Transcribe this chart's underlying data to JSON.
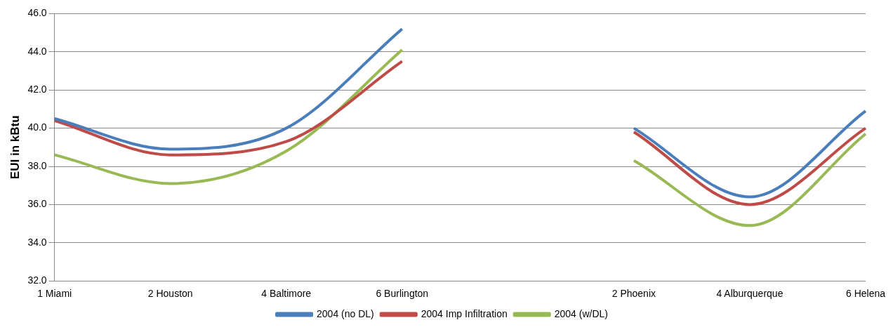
{
  "chart_data": {
    "type": "line",
    "ylabel": "EUI in kBtu",
    "categories": [
      "1 Miami",
      "2 Houston",
      "4 Baltimore",
      "6 Burlington",
      null,
      "2 Phoenix",
      "4 Alburquerque",
      "6 Helena"
    ],
    "series": [
      {
        "name": "2004 (no DL)",
        "color": "#4a7ebb",
        "values": [
          40.5,
          38.9,
          40.0,
          45.2,
          null,
          40.0,
          36.4,
          40.9
        ]
      },
      {
        "name": "2004 Imp Infiltration",
        "color": "#be4b48",
        "values": [
          40.4,
          38.6,
          39.3,
          43.5,
          null,
          39.8,
          36.0,
          40.0
        ]
      },
      {
        "name": "2004 (w/DL)",
        "color": "#98b954",
        "values": [
          38.6,
          37.1,
          38.8,
          44.1,
          null,
          38.3,
          34.9,
          39.7
        ]
      }
    ],
    "ylim": [
      32,
      46
    ],
    "yticks": [
      {
        "value": 32,
        "label": "32.0"
      },
      {
        "value": 34,
        "label": "34.0"
      },
      {
        "value": 36,
        "label": "36.0"
      },
      {
        "value": 38,
        "label": "38.0"
      },
      {
        "value": 40,
        "label": "40.0"
      },
      {
        "value": 42,
        "label": "42.0"
      },
      {
        "value": 44,
        "label": "44.0"
      },
      {
        "value": 46,
        "label": "46.0"
      }
    ],
    "grid": "y",
    "legend": "bottom",
    "marker": "none",
    "line_style": "solid"
  }
}
